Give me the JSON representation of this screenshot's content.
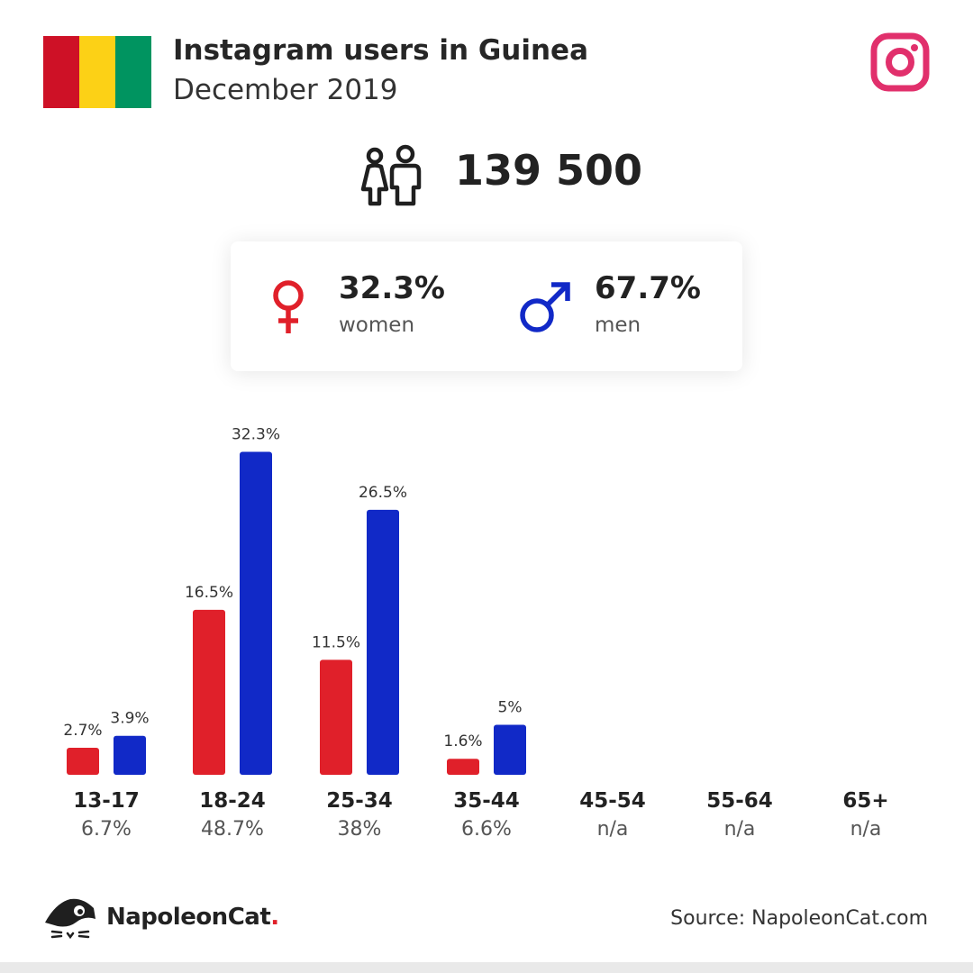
{
  "header": {
    "title": "Instagram users in Guinea",
    "subtitle": "December 2019",
    "flag_colors": [
      "#ce1126",
      "#fcd116",
      "#009460"
    ],
    "flag_icon": "guinea-flag-icon",
    "brand_icon": "instagram-icon",
    "brand_color": "#e1306c"
  },
  "total": {
    "icon": "users-couple-icon",
    "value": "139 500"
  },
  "gender": {
    "women": {
      "icon": "female-symbol-icon",
      "pct": "32.3%",
      "label": "women",
      "color": "#e0202a"
    },
    "men": {
      "icon": "male-symbol-icon",
      "pct": "67.7%",
      "label": "men",
      "color": "#1129c7"
    }
  },
  "chart_data": {
    "type": "bar",
    "categories": [
      "13-17",
      "18-24",
      "25-34",
      "35-44",
      "45-54",
      "55-64",
      "65+"
    ],
    "category_totals": [
      "6.7%",
      "48.7%",
      "38%",
      "6.6%",
      "n/a",
      "n/a",
      "n/a"
    ],
    "series": [
      {
        "name": "women",
        "color": "#e0202a",
        "values": [
          2.7,
          16.5,
          11.5,
          1.6,
          null,
          null,
          null
        ],
        "labels": [
          "2.7%",
          "16.5%",
          "11.5%",
          "1.6%",
          null,
          null,
          null
        ]
      },
      {
        "name": "men",
        "color": "#1129c7",
        "values": [
          3.9,
          32.3,
          26.5,
          5,
          null,
          null,
          null
        ],
        "labels": [
          "3.9%",
          "32.3%",
          "26.5%",
          "5%",
          null,
          null,
          null
        ]
      }
    ],
    "grid": false
  },
  "footer": {
    "brand": "NapoleonCat",
    "brand_dot": ".",
    "logo_icon": "napoleoncat-logo-icon",
    "source": "Source: NapoleonCat.com"
  }
}
